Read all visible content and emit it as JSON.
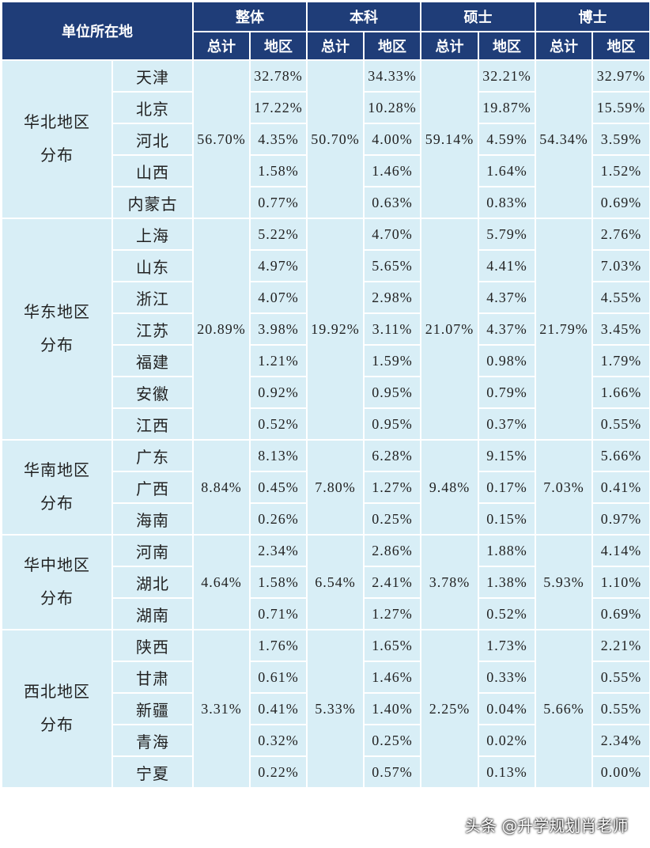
{
  "header": {
    "location": "单位所在地",
    "groups": [
      {
        "name": "整体",
        "columns": [
          "总计",
          "地区"
        ]
      },
      {
        "name": "本科",
        "columns": [
          "总计",
          "地区"
        ]
      },
      {
        "name": "硕士",
        "columns": [
          "总计",
          "地区"
        ]
      },
      {
        "name": "博士",
        "columns": [
          "总计",
          "地区"
        ]
      }
    ]
  },
  "regions": [
    {
      "name": "华北地区分布",
      "totals": [
        "56.70%",
        "50.70%",
        "59.14%",
        "54.34%"
      ],
      "rows": [
        {
          "place": "天津",
          "values": [
            "32.78%",
            "34.33%",
            "32.21%",
            "32.97%"
          ]
        },
        {
          "place": "北京",
          "values": [
            "17.22%",
            "10.28%",
            "19.87%",
            "15.59%"
          ]
        },
        {
          "place": "河北",
          "values": [
            "4.35%",
            "4.00%",
            "4.59%",
            "3.59%"
          ]
        },
        {
          "place": "山西",
          "values": [
            "1.58%",
            "1.46%",
            "1.64%",
            "1.52%"
          ]
        },
        {
          "place": "内蒙古",
          "values": [
            "0.77%",
            "0.63%",
            "0.83%",
            "0.69%"
          ]
        }
      ]
    },
    {
      "name": "华东地区分布",
      "totals": [
        "20.89%",
        "19.92%",
        "21.07%",
        "21.79%"
      ],
      "rows": [
        {
          "place": "上海",
          "values": [
            "5.22%",
            "4.70%",
            "5.79%",
            "2.76%"
          ]
        },
        {
          "place": "山东",
          "values": [
            "4.97%",
            "5.65%",
            "4.41%",
            "7.03%"
          ]
        },
        {
          "place": "浙江",
          "values": [
            "4.07%",
            "2.98%",
            "4.37%",
            "4.55%"
          ]
        },
        {
          "place": "江苏",
          "values": [
            "3.98%",
            "3.11%",
            "4.37%",
            "3.45%"
          ]
        },
        {
          "place": "福建",
          "values": [
            "1.21%",
            "1.59%",
            "0.98%",
            "1.79%"
          ]
        },
        {
          "place": "安徽",
          "values": [
            "0.92%",
            "0.95%",
            "0.79%",
            "1.66%"
          ]
        },
        {
          "place": "江西",
          "values": [
            "0.52%",
            "0.95%",
            "0.37%",
            "0.55%"
          ]
        }
      ]
    },
    {
      "name": "华南地区分布",
      "totals": [
        "8.84%",
        "7.80%",
        "9.48%",
        "7.03%"
      ],
      "rows": [
        {
          "place": "广东",
          "values": [
            "8.13%",
            "6.28%",
            "9.15%",
            "5.66%"
          ]
        },
        {
          "place": "广西",
          "values": [
            "0.45%",
            "1.27%",
            "0.17%",
            "0.41%"
          ]
        },
        {
          "place": "海南",
          "values": [
            "0.26%",
            "0.25%",
            "0.15%",
            "0.97%"
          ]
        }
      ]
    },
    {
      "name": "华中地区分布",
      "totals": [
        "4.64%",
        "6.54%",
        "3.78%",
        "5.93%"
      ],
      "rows": [
        {
          "place": "河南",
          "values": [
            "2.34%",
            "2.86%",
            "1.88%",
            "4.14%"
          ]
        },
        {
          "place": "湖北",
          "values": [
            "1.58%",
            "2.41%",
            "1.38%",
            "1.10%"
          ]
        },
        {
          "place": "湖南",
          "values": [
            "0.71%",
            "1.27%",
            "0.52%",
            "0.69%"
          ]
        }
      ]
    },
    {
      "name": "西北地区分布",
      "totals": [
        "3.31%",
        "5.33%",
        "2.25%",
        "5.66%"
      ],
      "rows": [
        {
          "place": "陕西",
          "values": [
            "1.76%",
            "1.65%",
            "1.73%",
            "2.21%"
          ]
        },
        {
          "place": "甘肃",
          "values": [
            "0.61%",
            "1.46%",
            "0.33%",
            "0.55%"
          ]
        },
        {
          "place": "新疆",
          "values": [
            "0.41%",
            "1.40%",
            "0.04%",
            "0.55%"
          ]
        },
        {
          "place": "青海",
          "values": [
            "0.32%",
            "0.25%",
            "0.02%",
            "2.34%"
          ]
        },
        {
          "place": "宁夏",
          "values": [
            "0.22%",
            "0.57%",
            "0.13%",
            "0.00%"
          ]
        }
      ]
    }
  ],
  "watermark": "头条 @升学规划肖老师"
}
